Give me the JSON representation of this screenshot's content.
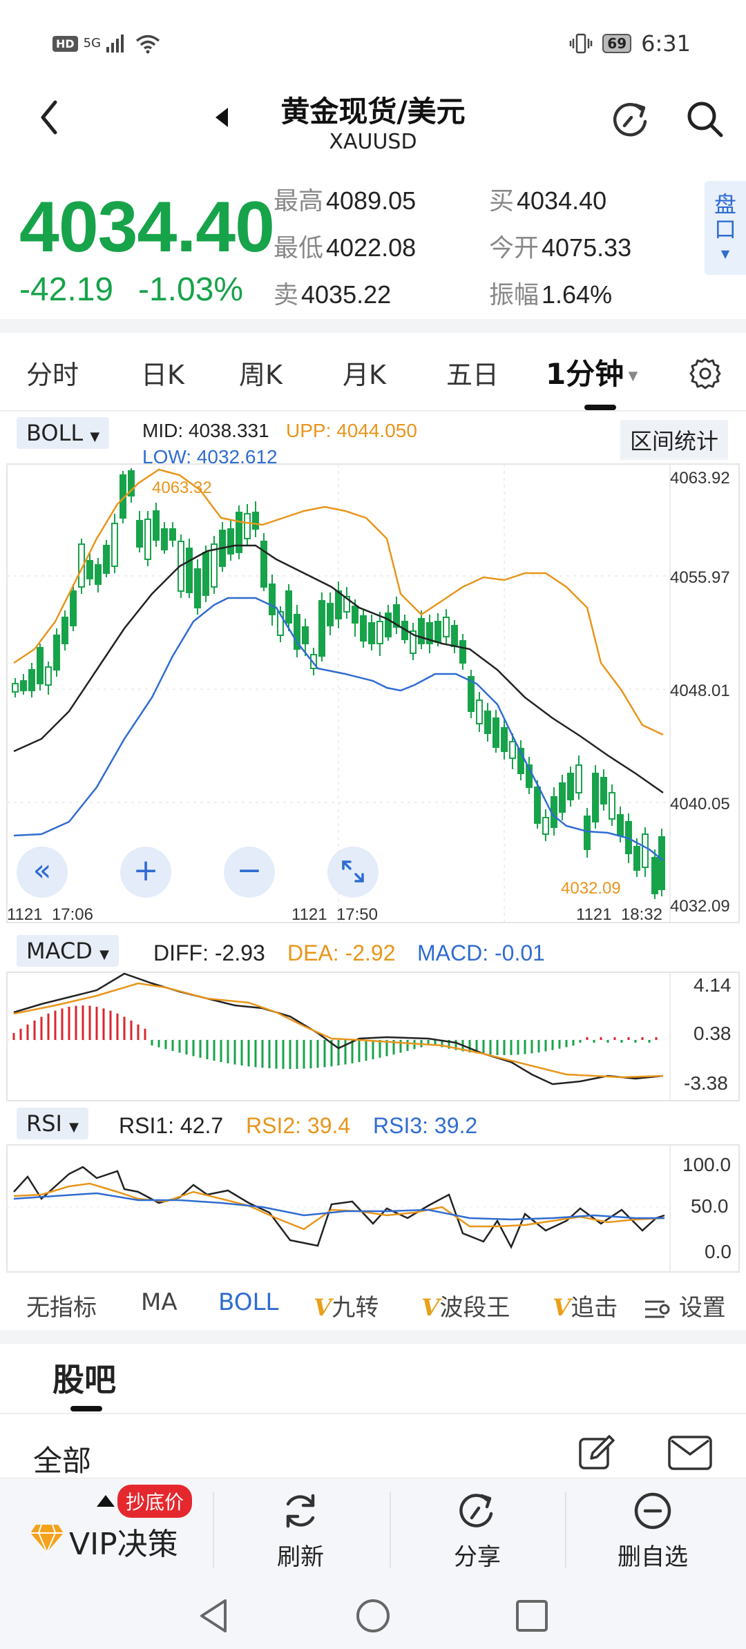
{
  "status_bar": {
    "network": "HD",
    "signal": "5G",
    "battery": "69",
    "time": "6:31"
  },
  "header": {
    "title": "黄金现货/美元",
    "symbol": "XAUUSD"
  },
  "quote": {
    "price": "4034.40",
    "change": "-42.19",
    "change_pct": "-1.03%",
    "high_label": "最高",
    "high": "4089.05",
    "low_label": "最低",
    "low": "4022.08",
    "sell_label": "卖",
    "sell": "4035.22",
    "buy_label": "买",
    "buy": "4034.40",
    "open_label": "今开",
    "open": "4075.33",
    "amp_label": "振幅",
    "amp": "1.64%",
    "pankou_label": "盘口",
    "colors": {
      "down": "#17a34a",
      "up": "#d9262c"
    }
  },
  "period_tabs": [
    "分时",
    "日K",
    "周K",
    "月K",
    "五日",
    "1分钟"
  ],
  "active_period": "1分钟",
  "boll": {
    "selector": "BOLL",
    "mid_label": "MID:",
    "mid": "4038.331",
    "upp_label": "UPP:",
    "upp": "4044.050",
    "low_label": "LOW:",
    "low": "4032.612",
    "range_stats": "区间统计"
  },
  "macd": {
    "selector": "MACD",
    "diff": "DIFF: -2.93",
    "dea": "DEA: -2.92",
    "macd": "MACD: -0.01"
  },
  "rsi": {
    "selector": "RSI",
    "rsi1": "RSI1: 42.7",
    "rsi2": "RSI2: 39.4",
    "rsi3": "RSI3: 39.2"
  },
  "chart_data": [
    {
      "type": "candlestick",
      "title": "",
      "y_ticks": [
        4063.92,
        4055.97,
        4048.01,
        4040.05,
        4032.09
      ],
      "y_tick_labels": [
        "4063.92",
        "4055.97",
        "4048.01",
        "4040.05",
        "4032.09"
      ],
      "x_ticks": [
        "1121  17:06",
        "1121  17:50",
        "1121  18:32"
      ],
      "annotations": [
        "4063.32",
        "4032.09"
      ],
      "ylim": [
        4032.09,
        4063.92
      ],
      "grid": true
    },
    {
      "type": "line",
      "title": "",
      "y_tick_labels": [
        "4.14",
        "0.38",
        "-3.38"
      ],
      "ylim": [
        -3.38,
        4.14
      ]
    },
    {
      "type": "line",
      "title": "",
      "y_tick_labels": [
        "100.0",
        "50.0",
        "0.0"
      ],
      "ylim": [
        0,
        100
      ]
    }
  ],
  "indicator_tabs": [
    "无指标",
    "MA",
    "BOLL",
    "九转",
    "波段王",
    "追击",
    "设置"
  ],
  "v_mark": "V",
  "guba": {
    "title": "股吧",
    "filter": "全部"
  },
  "toolbar": {
    "badge": "抄底价",
    "vip": "VIP决策",
    "refresh": "刷新",
    "share": "分享",
    "remove": "删自选"
  }
}
